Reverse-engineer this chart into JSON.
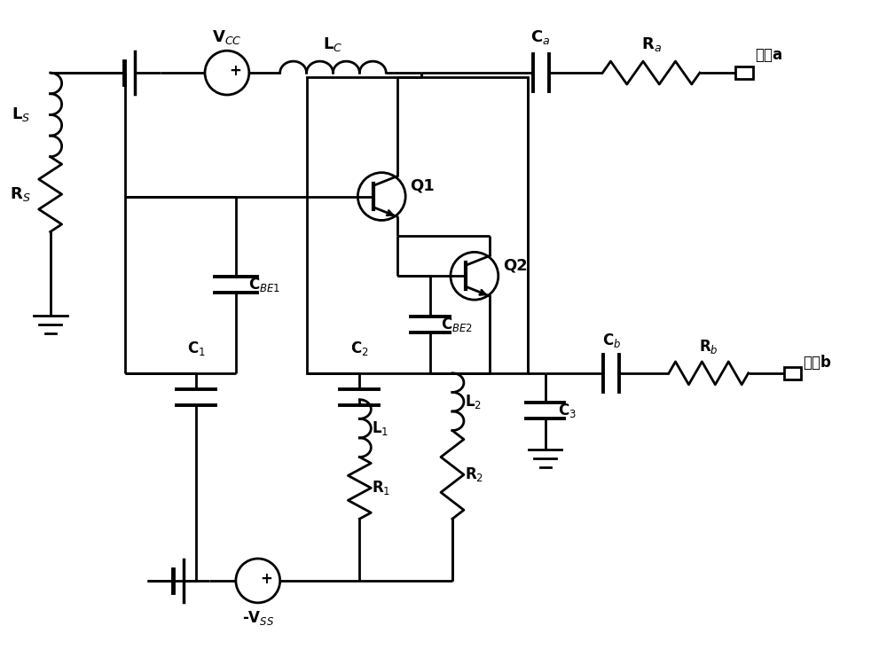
{
  "bg_color": "#ffffff",
  "lw": 2.0,
  "fig_w": 10.0,
  "fig_h": 7.41,
  "labels": {
    "VCC": "V$_{CC}$",
    "LC": "L$_C$",
    "Ca": "C$_a$",
    "Ra": "R$_a$",
    "porta": "端口a",
    "Q1": "Q1",
    "Q2": "Q2",
    "CBE1": "C$_{BE1}$",
    "CBE2": "C$_{BE2}$",
    "LS": "L$_S$",
    "RS": "R$_S$",
    "C1": "C$_1$",
    "C2": "C$_2$",
    "C3": "C$_3$",
    "L1": "L$_1$",
    "L2": "L$_2$",
    "R1": "R$_1$",
    "R2": "R$_2$",
    "Cb": "C$_b$",
    "Rb": "R$_b$",
    "portb": "端口b",
    "VSS": "-V$_{SS}$"
  }
}
